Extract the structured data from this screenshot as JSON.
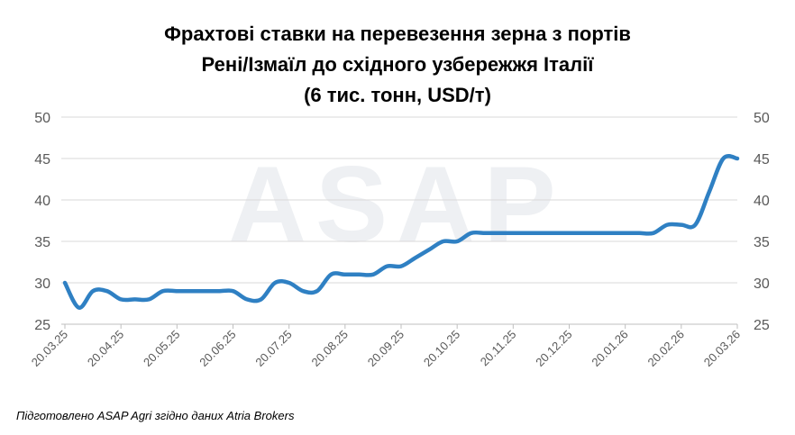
{
  "chart_data": {
    "type": "line",
    "title": [
      "Фрахтові ставки на перевезення зерна з портів",
      "Рені/Ізмаїл до східного узбережжя Італії",
      "(6 тис. тонн, USD/т)"
    ],
    "watermark": "ASAP",
    "source": "Підготовлено ASAP Agri згідно даних Atria Brokers",
    "categories": [
      "20.03.25",
      null,
      null,
      null,
      "20.04.25",
      null,
      null,
      null,
      "20.05.25",
      null,
      null,
      null,
      "20.06.25",
      null,
      null,
      null,
      "20.07.25",
      null,
      null,
      null,
      "20.08.25",
      null,
      null,
      null,
      "20.09.25",
      null,
      null,
      null,
      "20.10.25",
      null,
      null,
      null,
      "20.11.25",
      null,
      null,
      null,
      "20.12.25",
      null,
      null,
      null,
      "20.01.26",
      null,
      null,
      null,
      "20.02.26",
      null,
      null,
      null,
      "20.03.26"
    ],
    "values": [
      30,
      27,
      29,
      29,
      28,
      28,
      28,
      29,
      29,
      29,
      29,
      29,
      29,
      28,
      28,
      30,
      30,
      29,
      29,
      31,
      31,
      31,
      31,
      32,
      32,
      33,
      34,
      35,
      35,
      36,
      36,
      36,
      36,
      36,
      36,
      36,
      36,
      36,
      36,
      36,
      36,
      36,
      36,
      37,
      37,
      37,
      41,
      45,
      45
    ],
    "color": "#2f80c3",
    "ylim": [
      25,
      50
    ],
    "yticks": [
      25,
      30,
      35,
      40,
      45,
      50
    ],
    "y2lim": [
      25,
      50
    ],
    "y2ticks": [
      25,
      30,
      35,
      40,
      45,
      50
    ],
    "grid": true
  }
}
